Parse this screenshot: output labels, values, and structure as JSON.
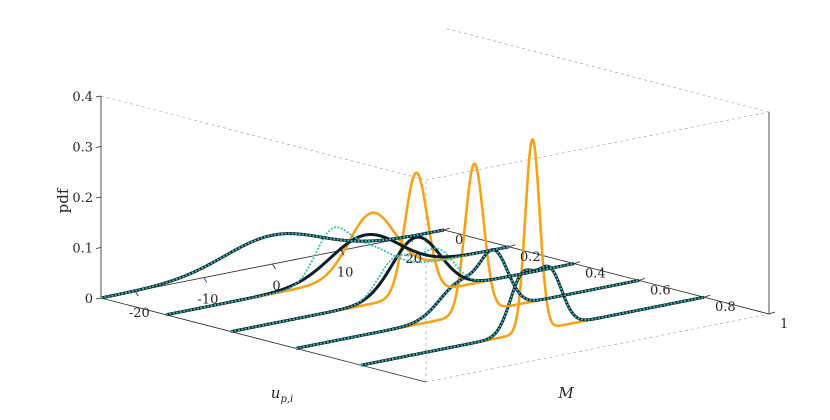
{
  "colors": {
    "orange": "#F7A21B",
    "black": "#0B1E2A",
    "teal": "#3CBFB3",
    "axis": "#262626",
    "grid": "#9A9A9A"
  },
  "chart_data": {
    "type": "line",
    "view": "3d-waterfall",
    "axes": {
      "x": {
        "label": "u_{p,i}",
        "label_text": "u",
        "label_sub": "p,i",
        "range": [
          -25,
          25
        ],
        "ticks": [
          -20,
          -10,
          0,
          10,
          20
        ],
        "tick_labels": [
          "-20",
          "-10",
          "0",
          "10",
          "20"
        ]
      },
      "y": {
        "label": "M",
        "range": [
          0,
          1
        ],
        "ticks": [
          0,
          0.2,
          0.4,
          0.6,
          0.8,
          1
        ],
        "tick_labels": [
          "0",
          "0.2",
          "0.4",
          "0.6",
          "0.8",
          "1"
        ]
      },
      "z": {
        "label": "pdf",
        "range": [
          0,
          0.4
        ],
        "ticks": [
          0,
          0.1,
          0.2,
          0.3,
          0.4
        ],
        "tick_labels": [
          "0",
          "0.1",
          "0.2",
          "0.3",
          "0.4"
        ]
      }
    },
    "grid": false,
    "legend": "none",
    "slices": [
      {
        "M": 0.0,
        "orange": {
          "mean": 0.0,
          "std": 7.0
        },
        "black": [
          {
            "mean": 0.0,
            "std": 7.0,
            "weight": 1.0
          }
        ],
        "teal": [
          {
            "mean": 0.0,
            "std": 7.0,
            "weight": 1.0
          }
        ]
      },
      {
        "M": 0.2,
        "orange": {
          "mean": 5.0,
          "std": 3.3
        },
        "black": [
          {
            "mean": 4.0,
            "std": 5.0,
            "weight": 1.0
          }
        ],
        "teal": [
          {
            "mean": 4.0,
            "std": 3.6,
            "weight": 0.5
          },
          {
            "mean": -1.0,
            "std": 2.4,
            "weight": 0.5
          }
        ]
      },
      {
        "M": 0.4,
        "orange": {
          "mean": 2.0,
          "std": 1.65
        },
        "black": [
          {
            "mean": 2.0,
            "std": 3.5,
            "weight": 1.0
          }
        ],
        "teal": [
          {
            "mean": -1.0,
            "std": 2.5,
            "weight": 0.5
          },
          {
            "mean": 5.0,
            "std": 2.5,
            "weight": 0.5
          }
        ]
      },
      {
        "M": 0.6,
        "orange": {
          "mean": 1.0,
          "std": 1.35
        },
        "black": [
          {
            "mean": -1.0,
            "std": 3.0,
            "weight": 0.5
          },
          {
            "mean": 4.0,
            "std": 2.0,
            "weight": 0.5
          }
        ],
        "teal": [
          {
            "mean": -1.0,
            "std": 3.0,
            "weight": 0.5
          },
          {
            "mean": 4.0,
            "std": 2.0,
            "weight": 0.5
          }
        ]
      },
      {
        "M": 0.8,
        "orange": {
          "mean": 0.0,
          "std": 1.05
        },
        "black": [
          {
            "mean": -1.5,
            "std": 1.8,
            "weight": 0.5
          },
          {
            "mean": 2.5,
            "std": 1.8,
            "weight": 0.5
          }
        ],
        "teal": [
          {
            "mean": -1.5,
            "std": 1.8,
            "weight": 0.5
          },
          {
            "mean": 2.5,
            "std": 1.8,
            "weight": 0.5
          }
        ]
      }
    ]
  }
}
